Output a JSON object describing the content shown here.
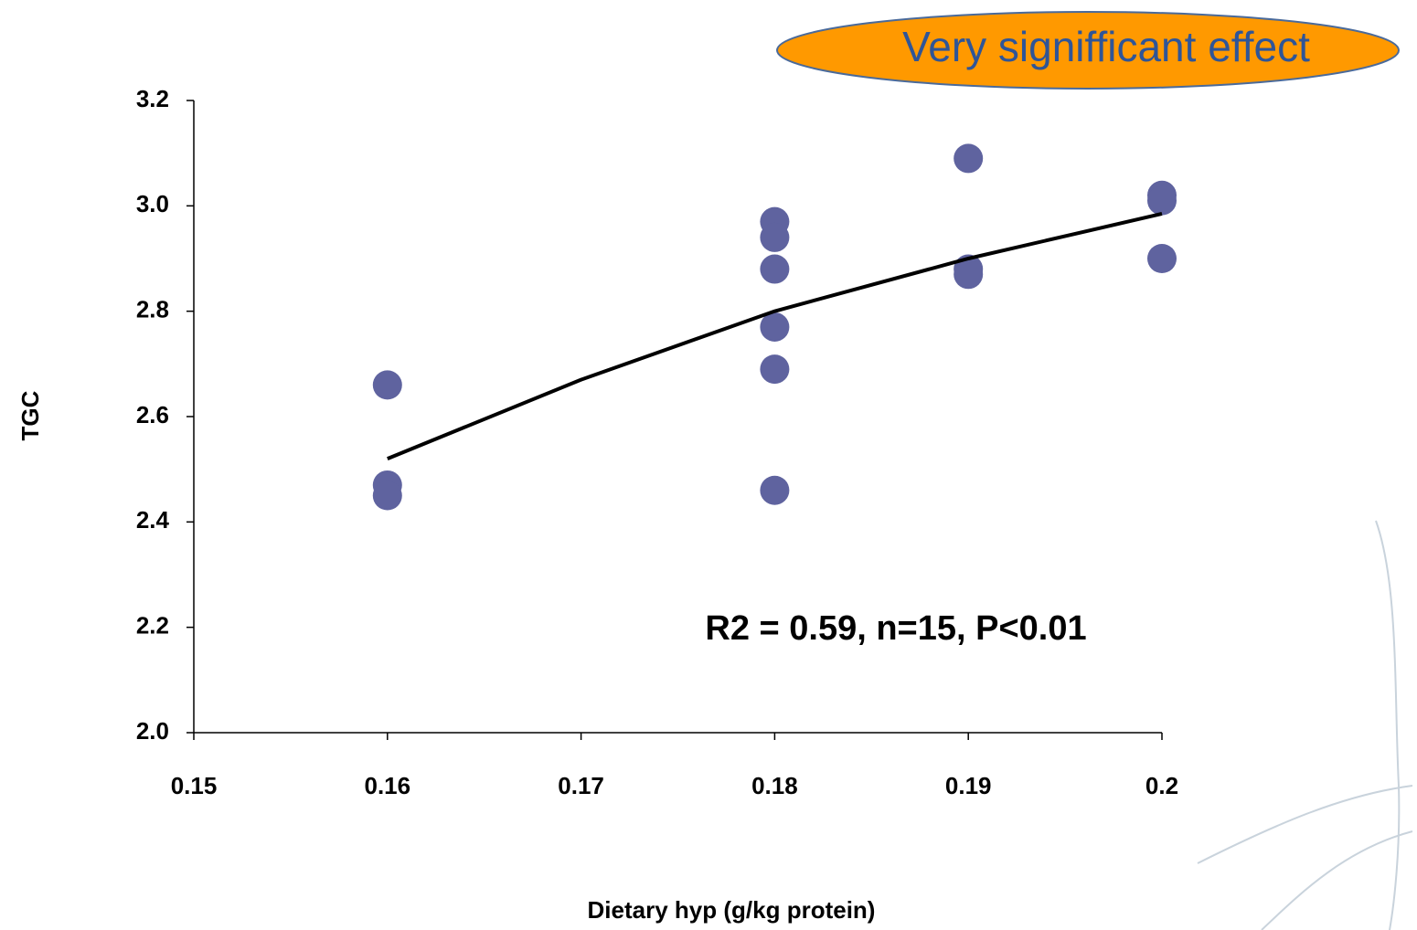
{
  "chart_data": {
    "type": "scatter",
    "annotation_box": "Very signifficant effect",
    "annotation": "R2 = 0.59, n=15, P<0.01",
    "x_label": "Dietary hyp (g/kg protein)",
    "y_label": "TGC",
    "series": [
      {
        "color": "#5f639f",
        "x": [
          0.16,
          0.16,
          0.16,
          0.18,
          0.18,
          0.18,
          0.18,
          0.18,
          0.18,
          0.19,
          0.19,
          0.19,
          0.2,
          0.2,
          0.2
        ],
        "values": [
          2.66,
          2.47,
          2.45,
          2.97,
          2.94,
          2.88,
          2.77,
          2.69,
          2.46,
          3.09,
          2.88,
          2.87,
          3.02,
          3.01,
          2.9
        ]
      },
      {
        "type": "line",
        "color": "#000000",
        "x": [
          0.16,
          0.17,
          0.18,
          0.19,
          0.2
        ],
        "values": [
          2.52,
          2.67,
          2.8,
          2.9,
          2.985
        ]
      }
    ],
    "xlim": [
      0.15,
      0.2
    ],
    "xticks": [
      0.15,
      0.16,
      0.17,
      0.18,
      0.19,
      0.2
    ],
    "ylim": [
      2.0,
      3.2
    ],
    "yticks": [
      {
        "value": 2,
        "label": "2.0"
      },
      2.2,
      2.4,
      2.6,
      2.8,
      {
        "value": 3,
        "label": "3.0"
      },
      3.2
    ]
  }
}
